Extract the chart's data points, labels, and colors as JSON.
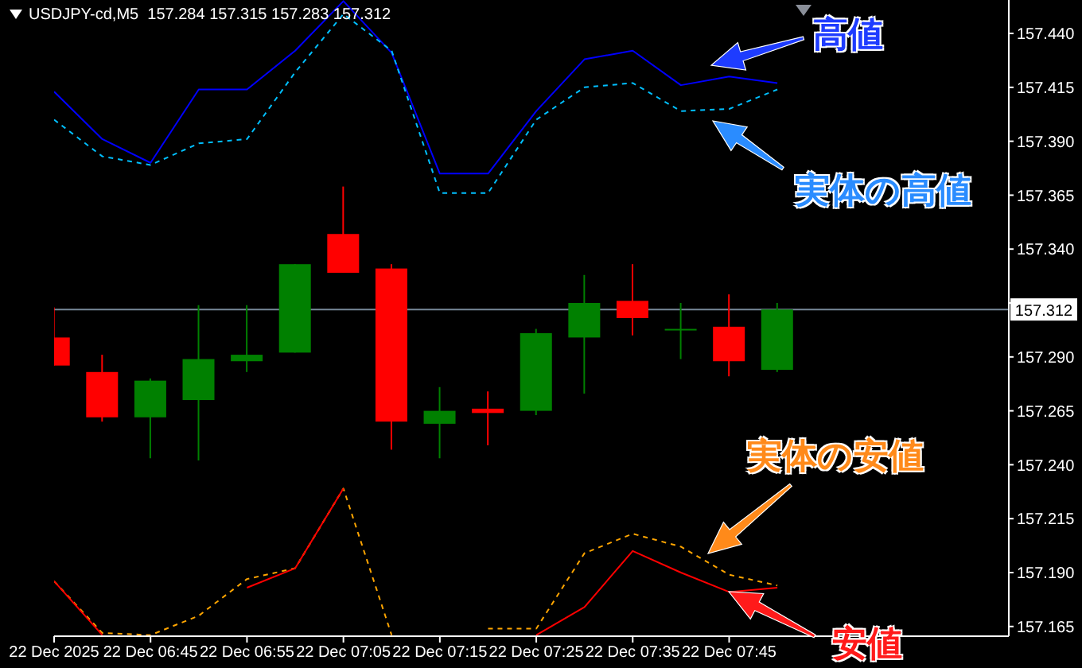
{
  "chart_data": {
    "type": "candlestick",
    "title": "USDJPY-cd,M5  157.284 157.315 157.283 157.312",
    "x": [
      "2025-12-22T06:35",
      "2025-12-22T06:40",
      "2025-12-22T06:45",
      "2025-12-22T06:50",
      "2025-12-22T06:55",
      "2025-12-22T07:00",
      "2025-12-22T07:05",
      "2025-12-22T07:10",
      "2025-12-22T07:15",
      "2025-12-22T07:20",
      "2025-12-22T07:25",
      "2025-12-22T07:30",
      "2025-12-22T07:35",
      "2025-12-22T07:40",
      "2025-12-22T07:45",
      "2025-12-22T07:50"
    ],
    "ohlc": [
      [
        157.299,
        157.313,
        157.286,
        157.286
      ],
      [
        157.283,
        157.291,
        157.26,
        157.262
      ],
      [
        157.262,
        157.28,
        157.243,
        157.279
      ],
      [
        157.27,
        157.314,
        157.242,
        157.289
      ],
      [
        157.288,
        157.314,
        157.283,
        157.291
      ],
      [
        157.292,
        157.333,
        157.292,
        157.333
      ],
      [
        157.347,
        157.369,
        157.329,
        157.329
      ],
      [
        157.331,
        157.333,
        157.247,
        157.26
      ],
      [
        157.259,
        157.276,
        157.243,
        157.265
      ],
      [
        157.266,
        157.274,
        157.249,
        157.264
      ],
      [
        157.265,
        157.303,
        157.263,
        157.301
      ],
      [
        157.299,
        157.328,
        157.273,
        157.315
      ],
      [
        157.316,
        157.333,
        157.3,
        157.308
      ],
      [
        157.303,
        157.315,
        157.289,
        157.303
      ],
      [
        157.304,
        157.319,
        157.281,
        157.288
      ],
      [
        157.284,
        157.315,
        157.283,
        157.312
      ]
    ],
    "colors": [
      "#ff0000",
      "#ff0000",
      "#008000",
      "#008000",
      "#008000",
      "#008000",
      "#ff0000",
      "#ff0000",
      "#008000",
      "#ff0000",
      "#008000",
      "#008000",
      "#ff0000",
      "#008000",
      "#ff0000",
      "#008000"
    ],
    "series": [
      {
        "name": "高値",
        "type": "line",
        "color": "#0000ff",
        "line_style": "solid",
        "values": [
          157.413,
          157.391,
          157.38,
          157.414,
          157.414,
          157.432,
          157.455,
          157.431,
          157.375,
          157.375,
          157.404,
          157.428,
          157.432,
          157.416,
          157.42,
          157.417
        ]
      },
      {
        "name": "実体の高値",
        "type": "line",
        "color": "#00bfff",
        "line_style": "dashed",
        "values": [
          157.4,
          157.383,
          157.379,
          157.389,
          157.391,
          157.422,
          157.449,
          157.432,
          157.366,
          157.366,
          157.4,
          157.415,
          157.417,
          157.404,
          157.405,
          157.414
        ]
      },
      {
        "name": "実体の安値",
        "type": "line",
        "color": "#ffa500",
        "line_style": "dashed",
        "values": [
          157.186,
          157.162,
          157.161,
          157.17,
          157.187,
          157.192,
          157.229,
          157.161,
          null,
          157.164,
          157.164,
          157.199,
          157.208,
          157.202,
          157.189,
          157.184
        ]
      },
      {
        "name": "安値",
        "type": "line",
        "color": "#ff0000",
        "line_style": "solid",
        "values": [
          157.186,
          157.161,
          null,
          null,
          157.183,
          157.192,
          157.229,
          null,
          null,
          null,
          157.161,
          157.174,
          157.2,
          157.19,
          157.181,
          157.183
        ]
      }
    ],
    "xlim": [
      "2025-12-22T06:35",
      "2025-12-22T08:14"
    ],
    "xticks": [
      {
        "value": "2025-12-22T06:35",
        "label": "22 Dec 2025"
      },
      {
        "value": "2025-12-22T06:45",
        "label": "22 Dec 06:45"
      },
      {
        "value": "2025-12-22T06:55",
        "label": "22 Dec 06:55"
      },
      {
        "value": "2025-12-22T07:05",
        "label": "22 Dec 07:05"
      },
      {
        "value": "2025-12-22T07:15",
        "label": "22 Dec 07:15"
      },
      {
        "value": "2025-12-22T07:25",
        "label": "22 Dec 07:25"
      },
      {
        "value": "2025-12-22T07:35",
        "label": "22 Dec 07:35"
      },
      {
        "value": "2025-12-22T07:45",
        "label": "22 Dec 07:45"
      }
    ],
    "ylim": [
      157.1605,
      157.4555
    ],
    "yticks": [
      {
        "value": 157.44,
        "label": "157.440"
      },
      157.415,
      {
        "value": 157.39,
        "label": "157.390"
      },
      157.365,
      {
        "value": 157.34,
        "label": "157.340"
      },
      {
        "value": 157.315,
        "label": null
      },
      {
        "value": 157.29,
        "label": "157.290"
      },
      157.265,
      {
        "value": 157.24,
        "label": "157.240"
      },
      157.215,
      {
        "value": 157.19,
        "label": "157.190"
      },
      157.165
    ],
    "ref_lines": [
      {
        "axis": "y",
        "value": 157.312,
        "label": "157.312",
        "color": "#778899"
      }
    ],
    "grid": false,
    "legend": false,
    "marker": "none"
  }
}
